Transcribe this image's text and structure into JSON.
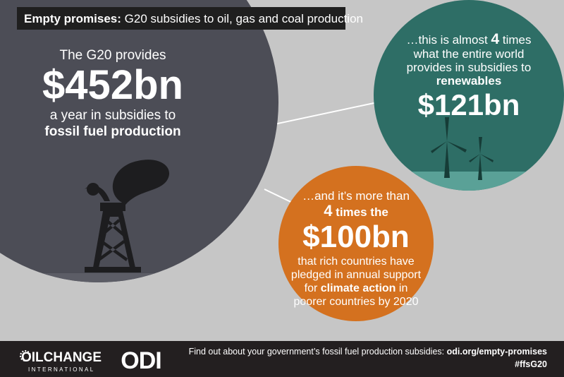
{
  "header": {
    "title_bold": "Empty promises:",
    "title_rest": "G20 subsidies to oil, gas and coal production"
  },
  "g20": {
    "intro": "The G20 provides",
    "amount": "$452bn",
    "line1": "a year in subsidies to",
    "line2": "fossil fuel production"
  },
  "renewables": {
    "line1_pre": "…this is almost",
    "line1_bold": "4",
    "line1_post": "times",
    "line2": "what the entire world",
    "line3": "provides in subsidies to",
    "line4": "renewables",
    "amount": "$121bn"
  },
  "climate": {
    "line1": "…and it’s more than",
    "line2_bold": "4",
    "line2_post": "times the",
    "amount": "$100bn",
    "line3": "that rich countries have",
    "line4": "pledged in annual support",
    "line5_pre": "for",
    "line5_bold": "climate action",
    "line5_post": "in",
    "line6": "poorer countries by 2020"
  },
  "footer": {
    "logo1": "OILCHANGE",
    "logo1_sub": "INTERNATIONAL",
    "logo2": "ODI",
    "cta_text": "Find out about your government’s fossil fuel production subsidies:",
    "cta_link": "odi.org/empty-promises",
    "hashtag": "#ffsG20"
  }
}
